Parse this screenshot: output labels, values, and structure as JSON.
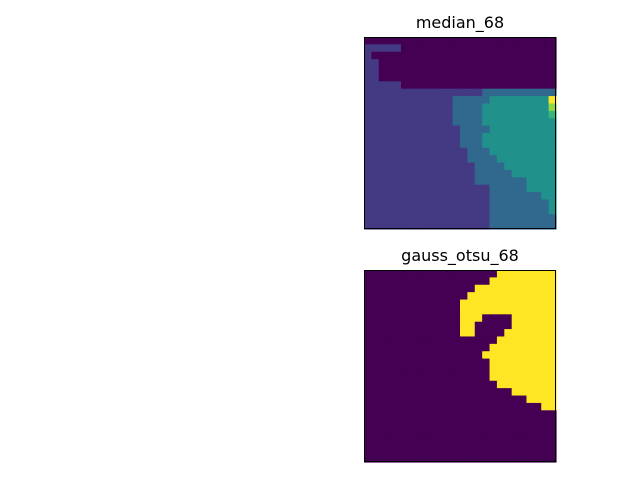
{
  "colors": {
    "viridis_palette": [
      "#440154",
      "#443a83",
      "#31688e",
      "#21918c",
      "#35b779",
      "#90d743",
      "#fde725"
    ],
    "binary_false": "#440154",
    "binary_true": "#fde725",
    "axes_edge": "#000000"
  },
  "chart_data": [
    {
      "type": "heatmap",
      "title": "median_68",
      "xlabel": "",
      "ylabel": "",
      "colormap": "viridis",
      "ticks": "none",
      "grid": false,
      "legend": "none",
      "levels_note": "cell values are viridis palette level indices 0-6",
      "grid_rows": [
        "00000000000000000000000000",
        "11111000000000000000000000",
        "10000000000000000000000000",
        "11000000000000000000000000",
        "11000000000000000000000000",
        "11000000000000000000000000",
        "11111000000000000000000000",
        "11111111111111112222222222",
        "11111111111122222333333336",
        "11111111111122223333333335",
        "11111111111122223333333334",
        "11111111111122223333333333",
        "11111111111112222333333333",
        "11111111111112223333333333",
        "11111111111112223333333333",
        "11111111111111222333333333",
        "11111111111111222233333333",
        "11111111111111122223333333",
        "11111111111111122222333333",
        "11111111111111122222223333",
        "11111111111111111222223333",
        "11111111111111111222222233",
        "11111111111111111222222223",
        "11111111111111111222222223",
        "11111111111111111222222222",
        "11111111111111111222222222"
      ]
    },
    {
      "type": "heatmap",
      "title": "gauss_otsu_68",
      "xlabel": "",
      "ylabel": "",
      "colormap": "binary (viridis endpoints)",
      "ticks": "none",
      "grid": false,
      "legend": "none",
      "grid_rows": [
        "00000000000000000011111111",
        "00000000000000000111111111",
        "00000000000000011111111111",
        "00000000000000111111111111",
        "00000000000001111111111111",
        "00000000000001111111111111",
        "00000000000001110000111111",
        "00000000000001100000111111",
        "00000000000001100001111111",
        "00000000000000000011111111",
        "00000000000000000111111111",
        "00000000000000001111111111",
        "00000000000000000111111111",
        "00000000000000000111111111",
        "00000000000000000111111111",
        "00000000000000000011111111",
        "00000000000000000000111111",
        "00000000000000000000001111",
        "00000000000000000000000011",
        "00000000000000000000000000",
        "00000000000000000000000000",
        "00000000000000000000000000",
        "00000000000000000000000000",
        "00000000000000000000000000",
        "00000000000000000000000000",
        "00000000000000000000000000"
      ]
    }
  ]
}
